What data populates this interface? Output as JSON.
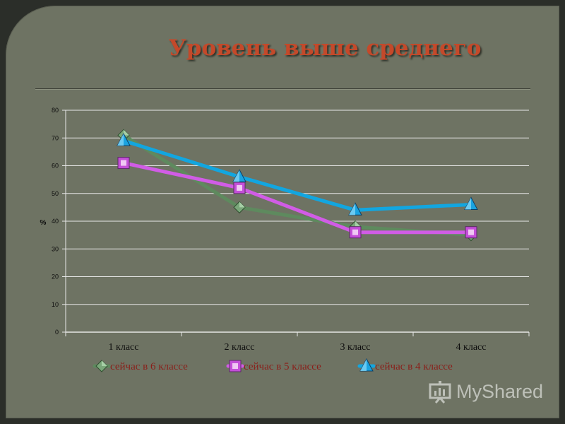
{
  "slide": {
    "title": "Уровень выше среднего",
    "watermark_text": "MyShared"
  },
  "colors": {
    "background": "#6e7363",
    "title": "#c4492a",
    "series_6": "#5e8a5e",
    "series_5": "#d15ce6",
    "series_4": "#12a6e0"
  },
  "chart_data": {
    "type": "line",
    "categories": [
      "1 класс",
      "2 класс",
      "3 класс",
      "4 класс"
    ],
    "ylabel": "%",
    "ylim": [
      0,
      80
    ],
    "yticks": [
      0,
      10,
      20,
      30,
      40,
      50,
      60,
      70,
      80
    ],
    "grid": true,
    "legend": "bottom",
    "series": [
      {
        "name": "сейчас в 6 классе",
        "values": [
          71,
          45,
          38,
          35
        ],
        "color": "#5e8a5e",
        "marker": "diamond"
      },
      {
        "name": "сейчас в 5 классе",
        "values": [
          61,
          52,
          36,
          36
        ],
        "color": "#d15ce6",
        "marker": "square"
      },
      {
        "name": "сейчас в 4 классе",
        "values": [
          69,
          56,
          44,
          46
        ],
        "color": "#12a6e0",
        "marker": "triangle"
      }
    ]
  }
}
